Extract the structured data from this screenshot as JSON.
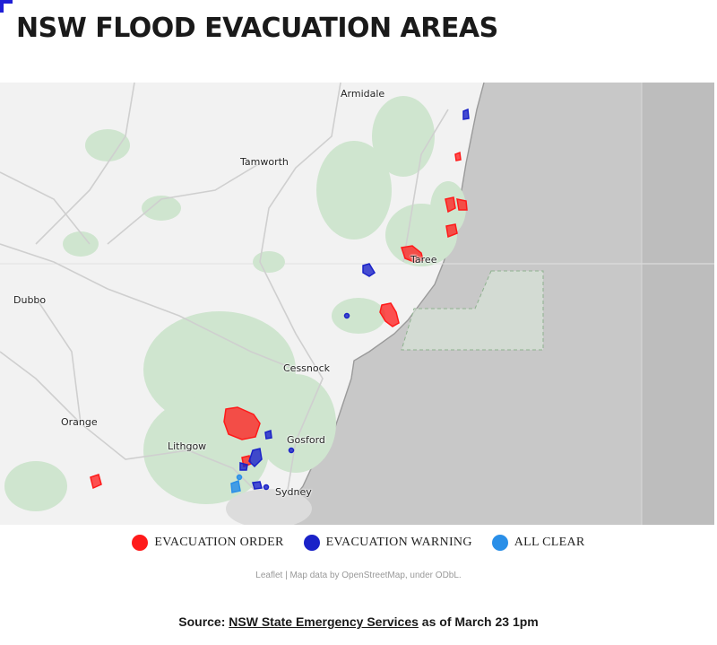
{
  "title": "NSW FLOOD EVACUATION AREAS",
  "colors": {
    "evacuation_order": "#ff1a1a",
    "evacuation_warning": "#1a22c8",
    "all_clear": "#2a8fe8",
    "ocean": "#c8c8c8",
    "land": "#f2f2f2",
    "vegetation": "#cfe5cf",
    "accent": "#1f1fd6"
  },
  "map": {
    "places": [
      {
        "id": "armidale",
        "name": "Armidale"
      },
      {
        "id": "tamworth",
        "name": "Tamworth"
      },
      {
        "id": "taree",
        "name": "Taree"
      },
      {
        "id": "dubbo",
        "name": "Dubbo"
      },
      {
        "id": "cessnock",
        "name": "Cessnock"
      },
      {
        "id": "orange",
        "name": "Orange"
      },
      {
        "id": "lithgow",
        "name": "Lithgow"
      },
      {
        "id": "gosford",
        "name": "Gosford"
      },
      {
        "id": "sydney",
        "name": "Sydney"
      }
    ]
  },
  "legend": {
    "items": [
      {
        "label": "EVACUATION ORDER",
        "color": "#ff1a1a"
      },
      {
        "label": "EVACUATION WARNING",
        "color": "#1a22c8"
      },
      {
        "label": "ALL CLEAR",
        "color": "#2a8fe8"
      }
    ]
  },
  "attribution": {
    "leaflet": "Leaflet",
    "separator": " | ",
    "text": "Map data by OpenStreetMap, under ODbL."
  },
  "source": {
    "prefix": "Source: ",
    "link": "NSW State Emergency Services",
    "suffix": " as of March 23 1pm"
  }
}
